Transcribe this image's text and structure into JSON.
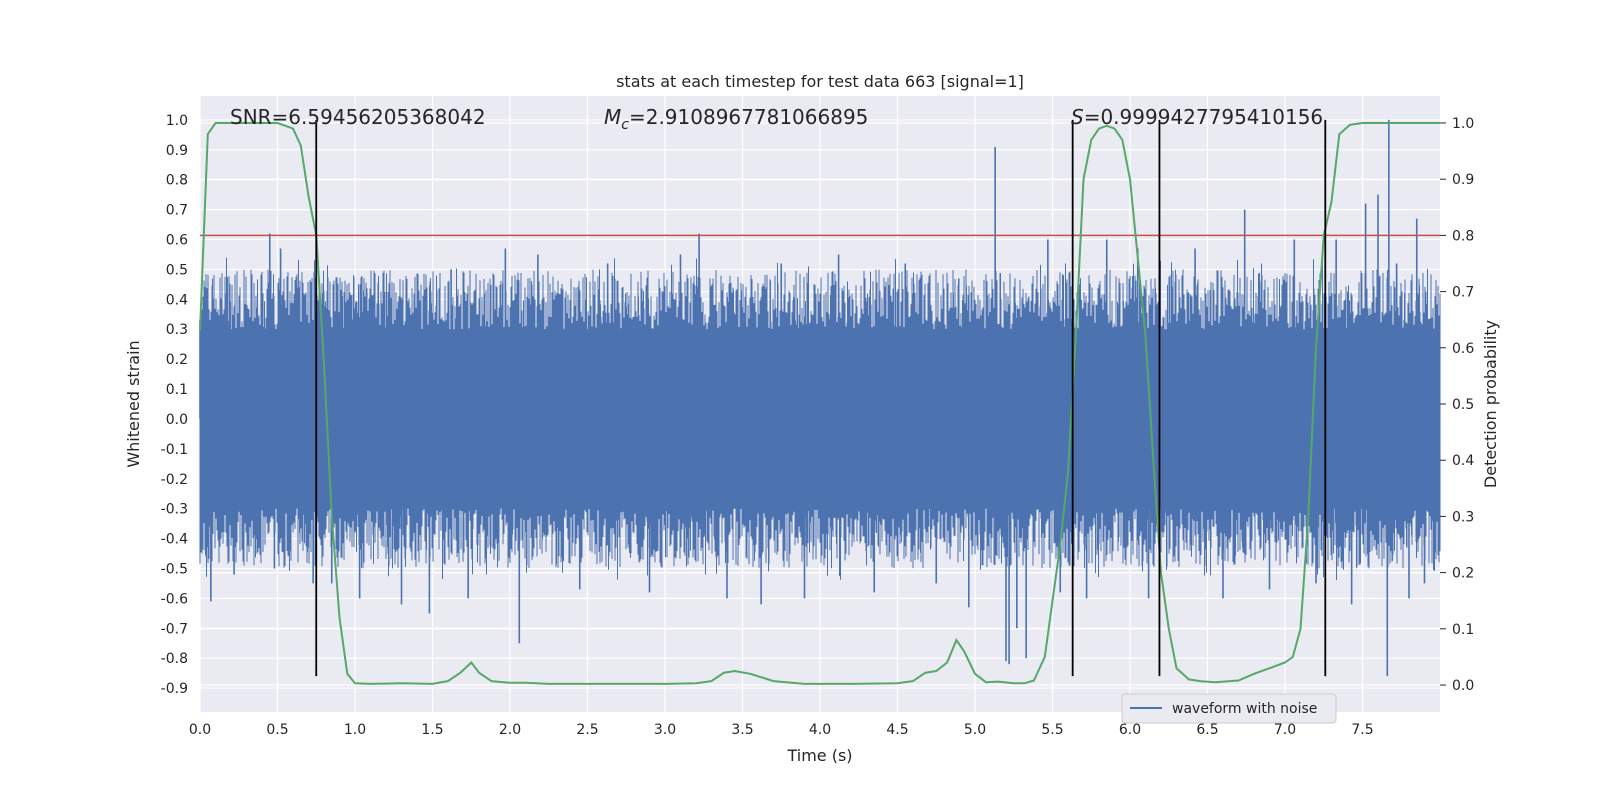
{
  "chart_data": {
    "type": "line",
    "title": "stats at each timestep for test data 663 [signal=1]",
    "xlabel": "Time (s)",
    "ylabel": "Whitened strain",
    "y2label": "Detection probability",
    "xlim": [
      0.0,
      8.0
    ],
    "ylim": [
      -0.98,
      1.08
    ],
    "y2lim": [
      -0.048,
      1.048
    ],
    "xticks": [
      0.0,
      0.5,
      1.0,
      1.5,
      2.0,
      2.5,
      3.0,
      3.5,
      4.0,
      4.5,
      5.0,
      5.5,
      6.0,
      6.5,
      7.0,
      7.5
    ],
    "xtick_labels": [
      "0.0",
      "0.5",
      "1.0",
      "1.5",
      "2.0",
      "2.5",
      "3.0",
      "3.5",
      "4.0",
      "4.5",
      "5.0",
      "5.5",
      "6.0",
      "6.5",
      "7.0",
      "7.5"
    ],
    "yticks": [
      1.0,
      0.9,
      0.8,
      0.7,
      0.6,
      0.5,
      0.4,
      0.3,
      0.2,
      0.1,
      0.0,
      -0.1,
      -0.2,
      -0.3,
      -0.4,
      -0.5,
      -0.6,
      -0.7,
      -0.8,
      -0.9
    ],
    "ytick_labels": [
      "1.0",
      "0.9",
      "0.8",
      "0.7",
      "0.6",
      "0.5",
      "0.4",
      "0.3",
      "0.2",
      "0.1",
      "0.0",
      "-0.1",
      "-0.2",
      "-0.3",
      "-0.4",
      "-0.5",
      "-0.6",
      "-0.7",
      "-0.8",
      "-0.9"
    ],
    "y2ticks": [
      1.0,
      0.9,
      0.8,
      0.7,
      0.6,
      0.5,
      0.4,
      0.3,
      0.2,
      0.1,
      0.0
    ],
    "y2tick_labels": [
      "1.0",
      "0.9",
      "0.8",
      "0.7",
      "0.6",
      "0.5",
      "0.4",
      "0.3",
      "0.2",
      "0.1",
      "0.0"
    ],
    "annotations": {
      "snr": "SNR=6.59456205368042",
      "mc_symbol": "M",
      "mc_sub": "c",
      "mc_value": "=2.9108967781066895",
      "s_symbol": "S",
      "s_value": "=0.9999427795410156"
    },
    "threshold": 0.8,
    "vlines": [
      0.75,
      5.63,
      6.19,
      7.26
    ],
    "vline_range": [
      -0.86,
      1.0
    ],
    "legend": {
      "label": "waveform with noise",
      "loc": "lower-right"
    },
    "series": [
      {
        "name": "waveform with noise",
        "axis": "left",
        "style": "dense-noise",
        "core_envelope": [
          -0.3,
          0.3
        ],
        "spikes": [
          {
            "t": 0.0,
            "v": 0.33
          },
          {
            "t": 0.07,
            "v": -0.61
          },
          {
            "t": 0.17,
            "v": 0.42
          },
          {
            "t": 0.22,
            "v": -0.52
          },
          {
            "t": 0.45,
            "v": 0.62
          },
          {
            "t": 0.48,
            "v": -0.5
          },
          {
            "t": 0.52,
            "v": 0.57
          },
          {
            "t": 0.62,
            "v": 0.45
          },
          {
            "t": 0.73,
            "v": -0.55
          },
          {
            "t": 0.85,
            "v": -0.55
          },
          {
            "t": 1.03,
            "v": -0.6
          },
          {
            "t": 1.15,
            "v": 0.45
          },
          {
            "t": 1.3,
            "v": -0.62
          },
          {
            "t": 1.48,
            "v": -0.65
          },
          {
            "t": 1.62,
            "v": 0.5
          },
          {
            "t": 1.73,
            "v": -0.6
          },
          {
            "t": 1.97,
            "v": 0.57
          },
          {
            "t": 2.06,
            "v": -0.75
          },
          {
            "t": 2.18,
            "v": 0.55
          },
          {
            "t": 2.45,
            "v": -0.57
          },
          {
            "t": 2.63,
            "v": 0.52
          },
          {
            "t": 2.9,
            "v": -0.58
          },
          {
            "t": 3.1,
            "v": 0.55
          },
          {
            "t": 3.22,
            "v": 0.62
          },
          {
            "t": 3.4,
            "v": -0.6
          },
          {
            "t": 3.62,
            "v": -0.62
          },
          {
            "t": 3.75,
            "v": 0.52
          },
          {
            "t": 3.9,
            "v": -0.6
          },
          {
            "t": 4.12,
            "v": 0.55
          },
          {
            "t": 4.35,
            "v": -0.58
          },
          {
            "t": 4.55,
            "v": 0.52
          },
          {
            "t": 4.75,
            "v": -0.55
          },
          {
            "t": 4.96,
            "v": -0.63
          },
          {
            "t": 5.13,
            "v": 0.91
          },
          {
            "t": 5.2,
            "v": -0.81
          },
          {
            "t": 5.22,
            "v": -0.82
          },
          {
            "t": 5.27,
            "v": -0.7
          },
          {
            "t": 5.33,
            "v": -0.8
          },
          {
            "t": 5.47,
            "v": 0.6
          },
          {
            "t": 5.55,
            "v": -0.58
          },
          {
            "t": 5.72,
            "v": -0.6
          },
          {
            "t": 5.85,
            "v": 0.6
          },
          {
            "t": 6.05,
            "v": 0.57
          },
          {
            "t": 6.12,
            "v": -0.6
          },
          {
            "t": 6.42,
            "v": 0.57
          },
          {
            "t": 6.6,
            "v": -0.6
          },
          {
            "t": 6.74,
            "v": 0.7
          },
          {
            "t": 6.9,
            "v": -0.57
          },
          {
            "t": 7.06,
            "v": 0.6
          },
          {
            "t": 7.2,
            "v": -0.55
          },
          {
            "t": 7.33,
            "v": 0.6
          },
          {
            "t": 7.43,
            "v": -0.62
          },
          {
            "t": 7.52,
            "v": 0.72
          },
          {
            "t": 7.6,
            "v": 0.75
          },
          {
            "t": 7.66,
            "v": -0.86
          },
          {
            "t": 7.67,
            "v": 1.0
          },
          {
            "t": 7.72,
            "v": 0.52
          },
          {
            "t": 7.8,
            "v": -0.6
          },
          {
            "t": 7.85,
            "v": 0.67
          },
          {
            "t": 7.9,
            "v": -0.55
          }
        ]
      },
      {
        "name": "detection probability",
        "axis": "right",
        "x": [
          0.0,
          0.05,
          0.1,
          0.2,
          0.3,
          0.4,
          0.5,
          0.6,
          0.65,
          0.7,
          0.75,
          0.8,
          0.85,
          0.9,
          0.95,
          1.0,
          1.1,
          1.3,
          1.5,
          1.6,
          1.68,
          1.75,
          1.8,
          1.88,
          2.0,
          2.1,
          2.25,
          2.5,
          2.75,
          3.0,
          3.2,
          3.3,
          3.38,
          3.45,
          3.55,
          3.7,
          3.9,
          4.2,
          4.5,
          4.6,
          4.68,
          4.75,
          4.82,
          4.88,
          4.93,
          5.0,
          5.07,
          5.15,
          5.25,
          5.32,
          5.38,
          5.45,
          5.5,
          5.55,
          5.6,
          5.65,
          5.7,
          5.75,
          5.8,
          5.85,
          5.9,
          5.95,
          6.0,
          6.05,
          6.1,
          6.15,
          6.2,
          6.25,
          6.3,
          6.38,
          6.45,
          6.55,
          6.7,
          6.8,
          6.9,
          7.0,
          7.05,
          7.1,
          7.15,
          7.2,
          7.25,
          7.3,
          7.35,
          7.42,
          7.5,
          7.6,
          7.7,
          7.8,
          7.9,
          8.0
        ],
        "values": [
          0.63,
          0.98,
          1.0,
          1.0,
          1.0,
          1.0,
          1.0,
          0.99,
          0.96,
          0.87,
          0.8,
          0.57,
          0.3,
          0.12,
          0.02,
          0.003,
          0.002,
          0.003,
          0.002,
          0.007,
          0.022,
          0.04,
          0.022,
          0.007,
          0.004,
          0.004,
          0.002,
          0.002,
          0.002,
          0.002,
          0.003,
          0.007,
          0.022,
          0.025,
          0.02,
          0.007,
          0.002,
          0.002,
          0.003,
          0.007,
          0.022,
          0.025,
          0.04,
          0.08,
          0.06,
          0.02,
          0.005,
          0.006,
          0.003,
          0.003,
          0.008,
          0.05,
          0.15,
          0.25,
          0.38,
          0.62,
          0.9,
          0.97,
          0.99,
          0.995,
          0.99,
          0.97,
          0.9,
          0.76,
          0.62,
          0.4,
          0.2,
          0.1,
          0.03,
          0.01,
          0.007,
          0.005,
          0.008,
          0.02,
          0.03,
          0.04,
          0.05,
          0.1,
          0.3,
          0.6,
          0.8,
          0.86,
          0.98,
          0.997,
          1.0,
          1.0,
          1.0,
          1.0,
          1.0,
          1.0
        ]
      }
    ]
  },
  "colors": {
    "axes_bg": "#eaeaf2",
    "grid": "#ffffff",
    "waveform": "#4c72b0",
    "probability": "#55a868",
    "threshold": "#c44e52",
    "vline": "#000000",
    "text": "#262626"
  }
}
